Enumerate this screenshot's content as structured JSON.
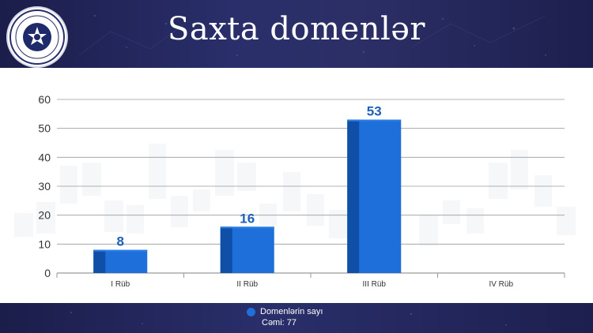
{
  "header": {
    "title": "Saxta domenlər"
  },
  "colors": {
    "bar": "#1e6fd9",
    "bar_side": "#0f4fa8",
    "bar_top": "#2b7fe6",
    "label": "#1e5fb8",
    "axis_text": "#333333",
    "grid": "#9a9a9a"
  },
  "chart_data": {
    "type": "bar",
    "categories": [
      "I Rüb",
      "II Rüb",
      "III Rüb",
      "IV Rüb"
    ],
    "series": [
      {
        "name": "Domenlərin sayı",
        "values": [
          8,
          16,
          53,
          null
        ]
      }
    ],
    "data_labels": [
      "8",
      "16",
      "53",
      ""
    ],
    "yticks": [
      "0",
      "10",
      "20",
      "30",
      "40",
      "50",
      "60"
    ],
    "ylim": [
      0,
      60
    ],
    "grid": true,
    "legend_position": "bottom"
  },
  "legend": {
    "series_label": "Domenlərin sayı",
    "total_label": "Cəmi: 77"
  }
}
